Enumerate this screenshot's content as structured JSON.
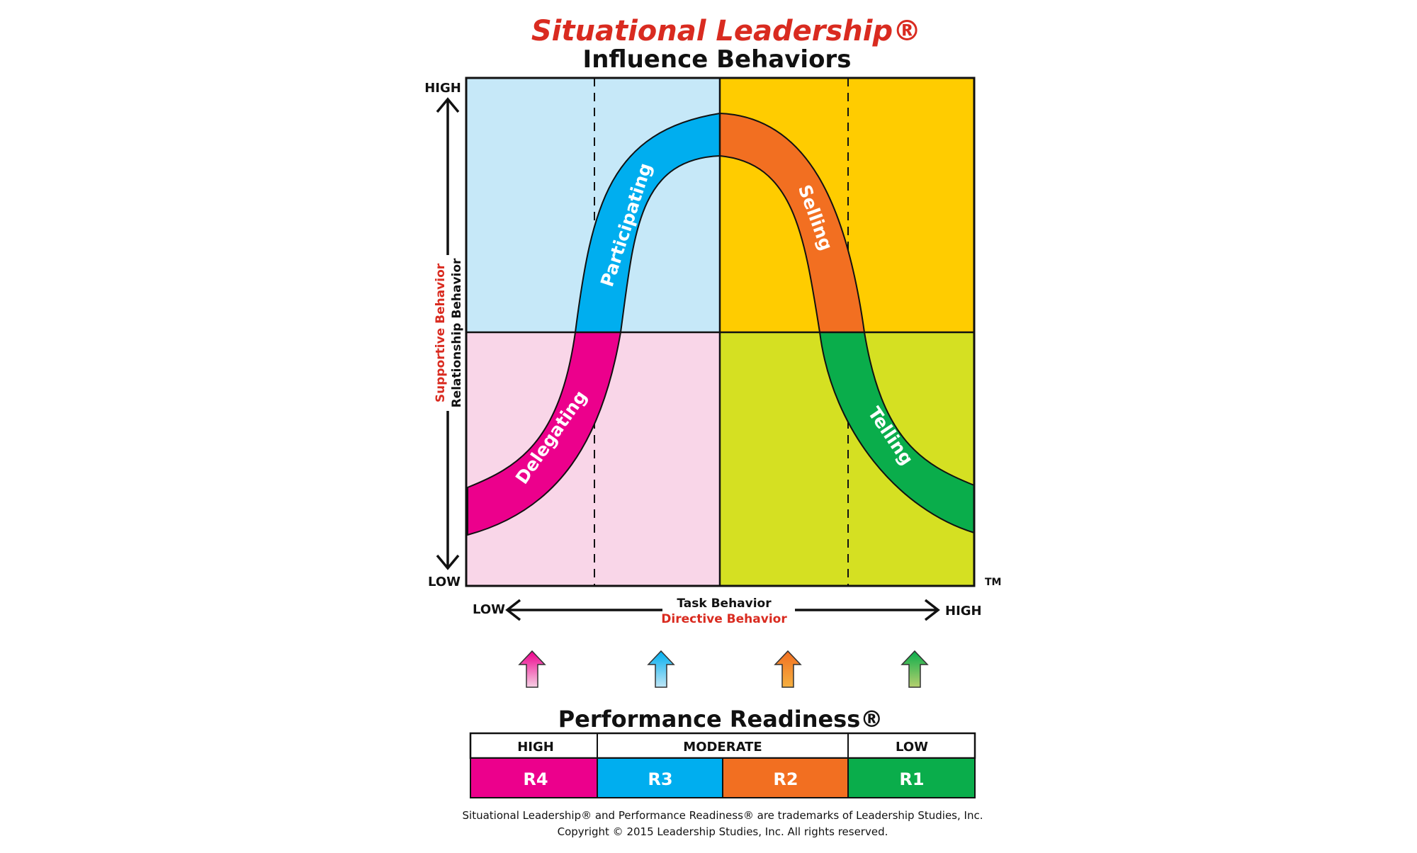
{
  "title": "Situational Leadership®",
  "subtitle": "Influence Behaviors",
  "y_axis": {
    "high": "HIGH",
    "low": "LOW",
    "label_red": "Supportive Behavior",
    "label_black": "Relationship Behavior"
  },
  "x_axis": {
    "low": "LOW",
    "high": "HIGH",
    "label_black": "Task Behavior",
    "label_red": "Directive Behavior"
  },
  "trademark": "TM",
  "styles": {
    "delegating": "Delegating",
    "participating": "Participating",
    "selling": "Selling",
    "telling": "Telling"
  },
  "readiness": {
    "title": "Performance Readiness®",
    "levels": [
      "HIGH",
      "MODERATE",
      "LOW"
    ],
    "r4": "R4",
    "r3": "R3",
    "r2": "R2",
    "r1": "R1"
  },
  "footer": {
    "line1": "Situational Leadership® and Performance Readiness® are trademarks of Leadership Studies, Inc.",
    "line2": "Copyright © 2015 Leadership Studies, Inc. All rights reserved."
  },
  "colors": {
    "title_red": "#d92b20",
    "q_participating_bg": "#c6e8f8",
    "q_selling_bg": "#ffcc00",
    "q_delegating_bg": "#f9d6e8",
    "q_telling_bg": "#d5e022",
    "magenta": "#ec008c",
    "blue": "#00aeef",
    "orange": "#f26f21",
    "green": "#0aad4b"
  }
}
